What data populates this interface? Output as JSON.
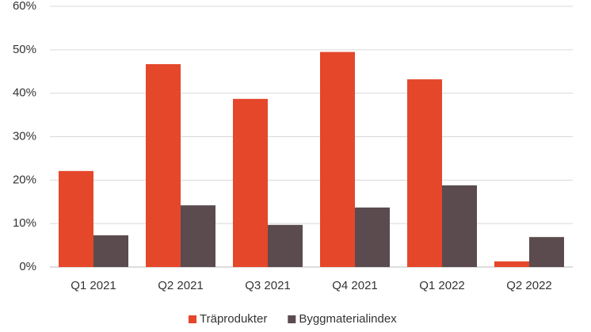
{
  "chart_data": {
    "type": "bar",
    "categories": [
      "Q1 2021",
      "Q2 2021",
      "Q3 2021",
      "Q4 2021",
      "Q1 2022",
      "Q2 2022"
    ],
    "series": [
      {
        "name": "Träprodukter",
        "color": "#e5472b",
        "values": [
          22.1,
          46.7,
          38.7,
          49.5,
          43.2,
          1.3
        ]
      },
      {
        "name": "Byggmaterialindex",
        "color": "#5b4b4e",
        "values": [
          7.3,
          14.2,
          9.7,
          13.7,
          18.8,
          6.9
        ]
      }
    ],
    "ylim": [
      0,
      60
    ],
    "yticks": [
      {
        "value": 0,
        "label": "0%"
      },
      {
        "value": 10,
        "label": "10%"
      },
      {
        "value": 20,
        "label": "20%"
      },
      {
        "value": 30,
        "label": "30%"
      },
      {
        "value": 40,
        "label": "40%"
      },
      {
        "value": 50,
        "label": "50%"
      },
      {
        "value": 60,
        "label": "60%"
      }
    ],
    "grid": true,
    "legend": "bottom"
  }
}
